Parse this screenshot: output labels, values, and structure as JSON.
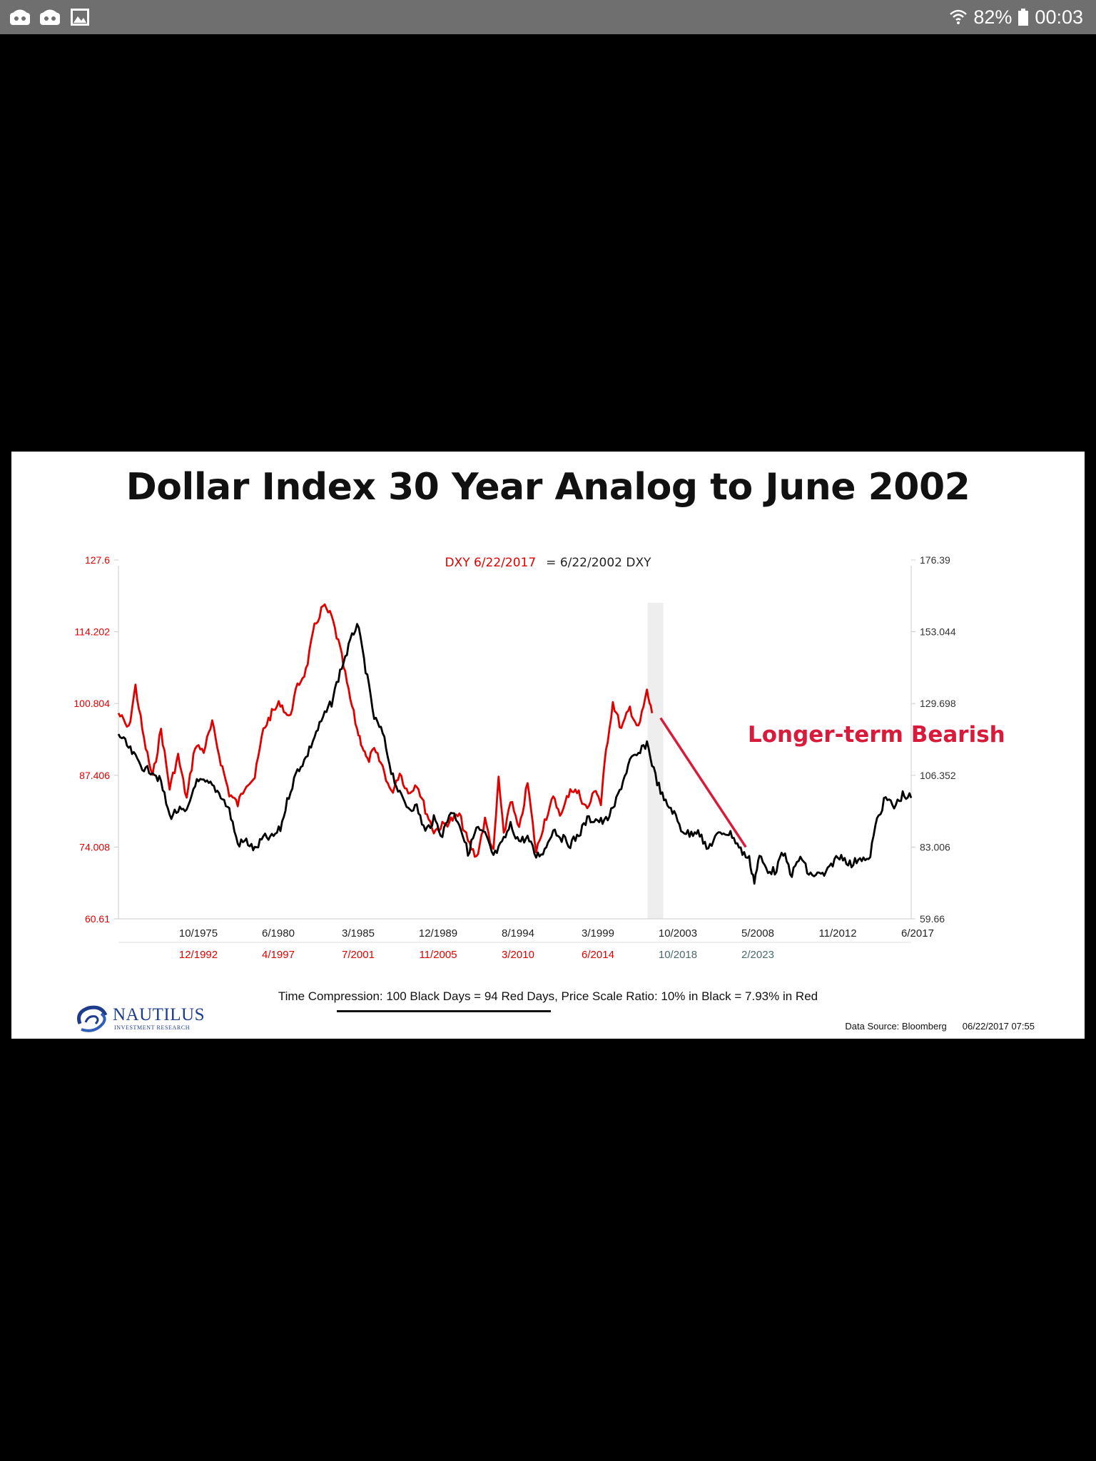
{
  "status_bar": {
    "battery": "82%",
    "time": "00:03",
    "left_icons": [
      "notification-icon",
      "notification-icon",
      "image-icon"
    ],
    "right_icons": [
      "wifi-icon",
      "battery-icon"
    ]
  },
  "chart_data": {
    "type": "line",
    "title": "Dollar Index 30 Year Analog to June 2002",
    "legend": {
      "red_label": "DXY 6/22/2017",
      "black_label": "= 6/22/2002 DXY",
      "placement": "top-center"
    },
    "annotation": "Longer-term Bearish",
    "y_left": {
      "color": "#e00000",
      "ticks": [
        "127.6",
        "114.202",
        "100.804",
        "87.406",
        "74.008",
        "60.61"
      ],
      "range": [
        60.61,
        127.6
      ]
    },
    "y_right": {
      "ticks": [
        "176.39",
        "153.044",
        "129.698",
        "106.352",
        "83.006",
        "59.66"
      ],
      "range": [
        59.66,
        176.39
      ]
    },
    "x_black_ticks": [
      "10/1975",
      "6/1980",
      "3/1985",
      "12/1989",
      "8/1994",
      "3/1999",
      "10/2003",
      "5/2008",
      "11/2012",
      "6/2017"
    ],
    "x_red_ticks": [
      "12/1992",
      "4/1997",
      "7/2001",
      "11/2005",
      "3/2010",
      "6/2014",
      "10/2018",
      "2/2023"
    ],
    "x_range": [
      1971.0,
      2017.5
    ],
    "grid": false,
    "shaded_band_at": 2002.5,
    "trend_line": [
      [
        2002.8,
        125
      ],
      [
        2007.8,
        83
      ]
    ],
    "series": [
      {
        "name": "DXY 6/22/2017",
        "color": "#e00000",
        "axis": "left",
        "x": [
          1971.0,
          1971.6,
          1972.0,
          1972.5,
          1973.0,
          1973.5,
          1974.0,
          1974.5,
          1975.0,
          1975.5,
          1976.0,
          1976.5,
          1977.0,
          1977.5,
          1978.0,
          1978.5,
          1979.0,
          1979.5,
          1980.0,
          1980.5,
          1981.0,
          1981.5,
          1982.0,
          1982.5,
          1983.0,
          1983.5,
          1984.0,
          1984.5,
          1985.0,
          1985.3,
          1985.6,
          1986.0,
          1986.5,
          1987.0,
          1987.5,
          1988.0,
          1988.5,
          1989.0,
          1989.5,
          1990.0,
          1990.5,
          1991.0,
          1991.5,
          1992.0,
          1992.5,
          1993.0,
          1993.3,
          1993.6,
          1994.0,
          1994.5,
          1995.0,
          1995.5,
          1996.0,
          1996.5,
          1997.0,
          1997.5,
          1998.0,
          1998.5,
          1999.0,
          1999.3,
          1999.6,
          2000.0,
          2000.5,
          2001.0,
          2001.5,
          2002.0,
          2002.3
        ],
        "y": [
          99,
          96,
          104,
          94,
          87,
          96,
          85,
          91,
          83,
          93,
          92,
          97,
          90,
          84,
          82,
          86,
          87,
          96,
          99,
          101,
          98,
          104,
          107,
          115,
          119,
          117,
          111,
          103,
          96,
          93,
          90,
          92,
          89,
          84,
          88,
          84,
          86,
          81,
          77,
          78,
          79,
          80,
          75,
          72,
          79,
          73,
          87,
          76,
          83,
          77,
          86,
          73,
          79,
          83,
          80,
          85,
          84,
          81,
          85,
          82,
          92,
          101,
          96,
          100,
          96,
          103,
          99
        ]
      },
      {
        "name": "6/22/2002 DXY",
        "color": "#000000",
        "axis": "right",
        "x": [
          1971.0,
          1971.5,
          1972.0,
          1972.6,
          1973.0,
          1973.5,
          1974.0,
          1974.5,
          1975.0,
          1975.5,
          1976.0,
          1976.5,
          1977.0,
          1977.5,
          1978.0,
          1978.5,
          1979.0,
          1979.5,
          1980.0,
          1980.5,
          1981.0,
          1981.5,
          1982.0,
          1982.5,
          1983.0,
          1983.5,
          1984.0,
          1984.5,
          1985.0,
          1985.5,
          1986.0,
          1986.5,
          1987.0,
          1987.5,
          1988.0,
          1988.5,
          1989.0,
          1989.5,
          1990.0,
          1990.5,
          1991.0,
          1991.5,
          1992.0,
          1992.5,
          1993.0,
          1993.5,
          1994.0,
          1994.5,
          1995.0,
          1995.5,
          1996.0,
          1996.5,
          1997.0,
          1997.5,
          1998.0,
          1998.5,
          1999.0,
          1999.5,
          2000.0,
          2000.5,
          2001.0,
          2001.5,
          2002.0,
          2002.5,
          2003.0,
          2003.5,
          2004.0,
          2004.5,
          2005.0,
          2005.5,
          2006.0,
          2006.5,
          2007.0,
          2007.5,
          2008.0,
          2008.3,
          2008.6,
          2009.0,
          2009.5,
          2010.0,
          2010.5,
          2011.0,
          2011.5,
          2012.0,
          2012.5,
          2013.0,
          2013.5,
          2014.0,
          2014.5,
          2015.0,
          2015.5,
          2016.0,
          2016.5,
          2017.0,
          2017.5
        ],
        "y": [
          120,
          116,
          112,
          108,
          108,
          104,
          93,
          95,
          94,
          104,
          104,
          103,
          100,
          95,
          84,
          85,
          82,
          86,
          86,
          89,
          100,
          108,
          112,
          119,
          125,
          130,
          140,
          148,
          156,
          141,
          125,
          120,
          108,
          100,
          96,
          96,
          88,
          92,
          87,
          95,
          91,
          81,
          89,
          87,
          80,
          84,
          90,
          85,
          86,
          80,
          82,
          89,
          86,
          84,
          87,
          92,
          92,
          91,
          95,
          103,
          111,
          113,
          117,
          106,
          98,
          95,
          89,
          87,
          89,
          82,
          86,
          88,
          87,
          82,
          79,
          72,
          80,
          76,
          75,
          81,
          74,
          80,
          74,
          74,
          74,
          79,
          80,
          77,
          80,
          78,
          92,
          99,
          96,
          100,
          99
        ]
      }
    ]
  },
  "footer": {
    "note_prefix": "Time Compression: ",
    "note_underlined": "100 Black Days = 94 Red Days,",
    "note_suffix": "  Price Scale Ratio: 10% in Black = 7.93% in Red",
    "logo_word": "NAUTILUS",
    "logo_sub": "INVESTMENT RESEARCH",
    "source": "Data Source: Bloomberg",
    "timestamp": "06/22/2017 07:55"
  }
}
